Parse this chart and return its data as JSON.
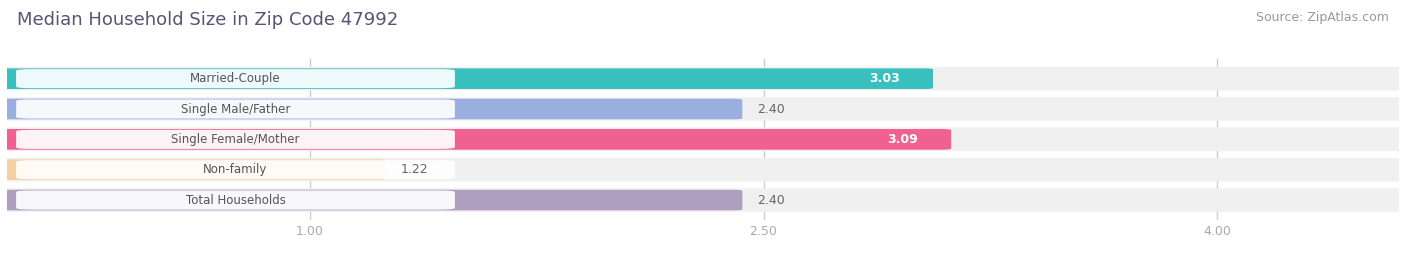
{
  "title": "Median Household Size in Zip Code 47992",
  "source": "Source: ZipAtlas.com",
  "categories": [
    "Married-Couple",
    "Single Male/Father",
    "Single Female/Mother",
    "Non-family",
    "Total Households"
  ],
  "values": [
    3.03,
    2.4,
    3.09,
    1.22,
    2.4
  ],
  "colors": [
    "#3abfbf",
    "#9aaee0",
    "#f06090",
    "#f5d0a0",
    "#b09ec0"
  ],
  "xmin": 0.0,
  "xmax": 4.6,
  "xticks": [
    1.0,
    2.5,
    4.0
  ],
  "xtick_labels": [
    "1.00",
    "2.50",
    "4.00"
  ],
  "bar_height": 0.62,
  "background_color": "#ffffff",
  "row_bg_color": "#f0f0f0",
  "bar_bg_color": "#e8e8e8",
  "value_fontsize": 9,
  "label_fontsize": 8.5,
  "title_fontsize": 13,
  "source_fontsize": 9,
  "title_color": "#555577",
  "label_text_color": "#555555"
}
